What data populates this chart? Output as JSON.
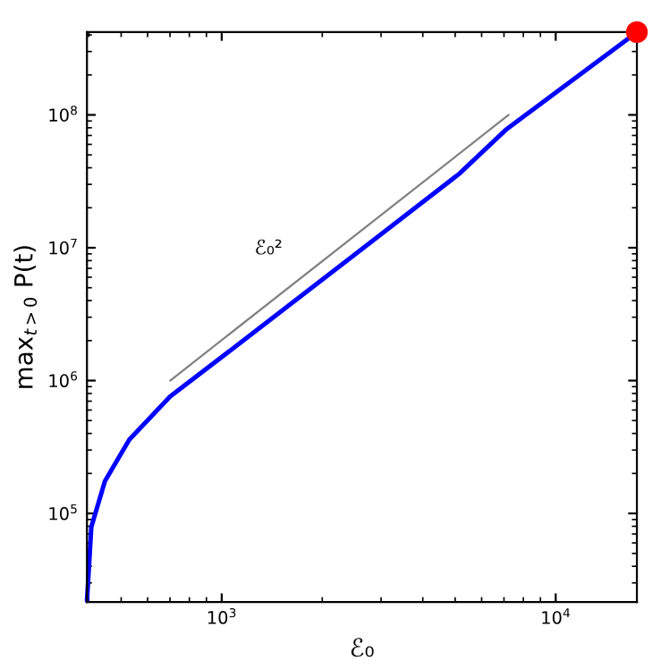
{
  "chart_data": {
    "type": "line",
    "xlabel": "ℰ₀",
    "ylabel": "max$_{t>0}$ P(t)",
    "log": "xy",
    "grid": false,
    "xlim": [
      395,
      17500
    ],
    "ylim": [
      21500,
      420000000
    ],
    "xticks": [
      {
        "value": 1000,
        "label": "10$^{3}$"
      },
      {
        "value": 10000,
        "label": "10$^{4}$"
      }
    ],
    "yticks": [
      {
        "value": 100000,
        "label": "10$^{5}$"
      },
      {
        "value": 1000000,
        "label": "10$^{6}$"
      },
      {
        "value": 10000000,
        "label": "10$^{7}$"
      },
      {
        "value": 100000000,
        "label": "10$^{8}$"
      }
    ],
    "series": [
      {
        "color": "#0000ff",
        "x": [
          395,
          407,
          447,
          529,
          701,
          1160,
          2520,
          5140,
          7080,
          17500
        ],
        "values": [
          22000,
          79000,
          175000,
          360000,
          760000,
          2000000,
          9000000,
          36000000,
          77000000,
          420000000
        ]
      },
      {
        "type": "line",
        "color": "#808080",
        "x": [
          701,
          7230
        ],
        "values": [
          1000000,
          100000000
        ]
      },
      {
        "type": "scatter",
        "color": "#ff0000",
        "x": [
          17500
        ],
        "values": [
          420000000
        ]
      }
    ],
    "annotations": [
      "ℰ₀²"
    ]
  }
}
